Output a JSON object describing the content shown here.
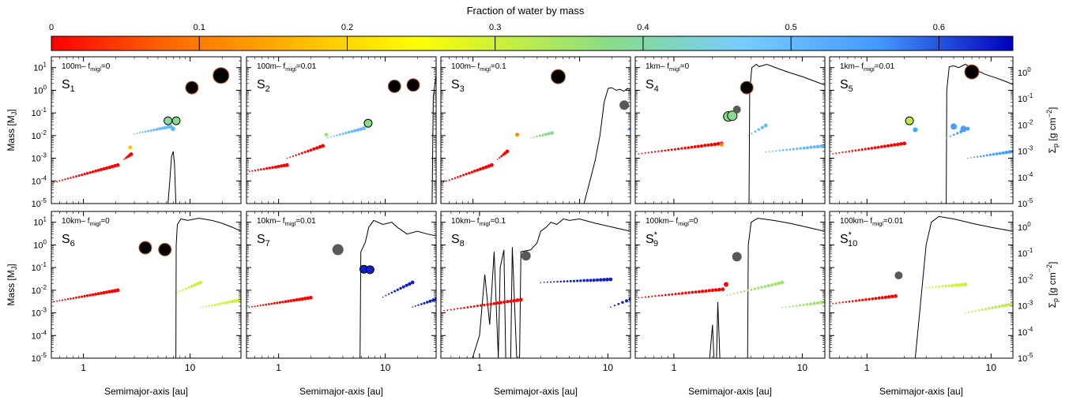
{
  "colorbar": {
    "title": "Fraction of water by mass",
    "range": [
      0,
      0.65
    ],
    "ticks": [
      {
        "value": 0,
        "label": "0"
      },
      {
        "value": 0.1,
        "label": "0.1"
      },
      {
        "value": 0.2,
        "label": "0.2"
      },
      {
        "value": 0.3,
        "label": "0.3"
      },
      {
        "value": 0.4,
        "label": "0.4"
      },
      {
        "value": 0.5,
        "label": "0.5"
      },
      {
        "value": 0.6,
        "label": "0.6"
      }
    ],
    "colormap": [
      "#ff0000",
      "#ff6600",
      "#ffbb00",
      "#ffff00",
      "#88dd88",
      "#77ccff",
      "#4499ff",
      "#0000bb"
    ]
  },
  "axes": {
    "ylabel_left": "Mass [M_J]",
    "ylabel_right": "Σp [g cm⁻²]",
    "xlabel": "Semimajor-axis [au]",
    "x_ticks": [
      {
        "value": 1,
        "label": "1"
      },
      {
        "value": 10,
        "label": "10"
      }
    ],
    "y_left_ticks": [
      "10^1",
      "10^0",
      "10^-1",
      "10^-2",
      "10^-3",
      "10^-4",
      "10^-5"
    ],
    "y_right_ticks": [
      "10^0",
      "10^-1",
      "10^-2",
      "10^-3",
      "10^-4",
      "10^-5"
    ]
  },
  "chart_data": [
    {
      "type": "scatter",
      "id": "S1",
      "label": "S",
      "sub": "1",
      "star": false,
      "size_text": "100m",
      "fmig_text": "0",
      "ylim": [
        1e-05,
        30
      ],
      "xlim": [
        0.5,
        30
      ],
      "disk_line": [
        [
          6.2,
          1e-05
        ],
        [
          6.45,
          0.0001
        ],
        [
          6.7,
          0.0012
        ],
        [
          6.95,
          0.002
        ],
        [
          7.15,
          0.0005
        ],
        [
          7.35,
          1e-05
        ]
      ],
      "embryos": [
        [
          0.5,
          2.1,
          8e-05,
          0.0005,
          0
        ],
        [
          2.4,
          2.8,
          0.0009,
          0.0015,
          0
        ],
        [
          3.0,
          6.6,
          0.012,
          0.025,
          0.5
        ]
      ],
      "points": [
        [
          2.75,
          0.003,
          0.18,
          2.5
        ],
        [
          6.2,
          0.045,
          0.4,
          5
        ],
        [
          7.4,
          0.045,
          0.38,
          5
        ],
        [
          6.9,
          0.02,
          0.5,
          3
        ],
        [
          10.4,
          1.3,
          0,
          8
        ],
        [
          19.5,
          4.5,
          0,
          10
        ]
      ]
    },
    {
      "type": "scatter",
      "id": "S2",
      "label": "S",
      "sub": "2",
      "star": false,
      "size_text": "100m",
      "fmig_text": "0.01",
      "ylim": [
        1e-05,
        30
      ],
      "xlim": [
        0.5,
        30
      ],
      "disk_line": [
        [
          27.5,
          1e-05
        ],
        [
          28.2,
          0.5
        ],
        [
          30,
          5
        ]
      ],
      "embryos": [
        [
          0.5,
          1.2,
          0.00025,
          0.0005,
          0
        ],
        [
          1.2,
          2.6,
          0.001,
          0.0035,
          0
        ],
        [
          2.9,
          6.3,
          0.008,
          0.021,
          0.5
        ]
      ],
      "points": [
        [
          2.8,
          0.011,
          0.35,
          2.5
        ],
        [
          6.9,
          0.035,
          0.38,
          5
        ],
        [
          12.2,
          1.5,
          0,
          8
        ],
        [
          18.3,
          1.7,
          0,
          8
        ]
      ]
    },
    {
      "type": "scatter",
      "id": "S3",
      "label": "S",
      "sub": "3",
      "star": false,
      "size_text": "100m",
      "fmig_text": "0.1",
      "ylim": [
        1e-05,
        30
      ],
      "xlim": [
        0.5,
        30
      ],
      "disk_line": [
        [
          11,
          1e-05
        ],
        [
          12.5,
          0.0001
        ],
        [
          14,
          0.0008
        ],
        [
          15.5,
          0.01
        ],
        [
          17,
          0.3
        ],
        [
          18.5,
          1.2
        ],
        [
          20,
          1.3
        ],
        [
          22,
          1
        ],
        [
          24,
          1.1
        ],
        [
          26,
          0.9
        ],
        [
          28,
          1.2
        ],
        [
          30,
          1.1
        ]
      ],
      "embryos": [
        [
          0.5,
          1.5,
          8e-05,
          0.0005,
          0
        ],
        [
          1.7,
          2.1,
          0.0009,
          0.002,
          0
        ],
        [
          3.5,
          5.5,
          0.008,
          0.013,
          0.38
        ],
        [
          28.5,
          30,
          0.018,
          0.02,
          0.5
        ]
      ],
      "points": [
        [
          2.6,
          0.011,
          0.12,
          2.5
        ],
        [
          6.3,
          4.0,
          0,
          9
        ],
        [
          26.2,
          0.22,
          -1,
          6
        ]
      ]
    },
    {
      "type": "scatter",
      "id": "S4",
      "label": "S",
      "sub": "4",
      "star": false,
      "size_text": "1km",
      "fmig_text": "0",
      "ylim": [
        1e-05,
        30
      ],
      "xlim": [
        0.5,
        15
      ],
      "disk_line": [
        [
          3.85,
          1e-05
        ],
        [
          3.9,
          1
        ],
        [
          4.05,
          10
        ],
        [
          4.4,
          14
        ],
        [
          4.6,
          11
        ],
        [
          5.3,
          14
        ],
        [
          6.5,
          9
        ],
        [
          8,
          6
        ],
        [
          10,
          4
        ],
        [
          12.5,
          2.5
        ],
        [
          15,
          1.7
        ]
      ],
      "embryos": [
        [
          0.5,
          2.35,
          0.0015,
          0.0045,
          0
        ],
        [
          3.8,
          5.2,
          0.01,
          0.028,
          0.5
        ],
        [
          5.2,
          15,
          0.0019,
          0.0035,
          0.5
        ]
      ],
      "points": [
        [
          2.35,
          0.004,
          0.12,
          2.5
        ],
        [
          2.65,
          0.07,
          0.38,
          6
        ],
        [
          2.85,
          0.075,
          0.38,
          6
        ],
        [
          3.1,
          0.14,
          -1,
          5
        ],
        [
          3.7,
          1.3,
          0,
          8
        ]
      ]
    },
    {
      "type": "scatter",
      "id": "S5",
      "label": "S",
      "sub": "5",
      "star": false,
      "size_text": "1km",
      "fmig_text": "0.01",
      "ylim": [
        1e-05,
        30
      ],
      "xlim": [
        0.5,
        15
      ],
      "disk_line": [
        [
          4.35,
          1e-05
        ],
        [
          4.4,
          1
        ],
        [
          4.6,
          11
        ],
        [
          5.0,
          12
        ],
        [
          5.5,
          10
        ],
        [
          6.2,
          14
        ],
        [
          7.5,
          8
        ],
        [
          9,
          5
        ],
        [
          11,
          3.5
        ],
        [
          13,
          2.5
        ],
        [
          15,
          1.8
        ]
      ],
      "embryos": [
        [
          0.5,
          2.0,
          0.0015,
          0.0045,
          0
        ],
        [
          4.4,
          6.5,
          0.008,
          0.02,
          0.55
        ],
        [
          6.5,
          15,
          0.001,
          0.002,
          0.55
        ]
      ],
      "points": [
        [
          2.2,
          0.045,
          0.32,
          5
        ],
        [
          2.45,
          0.018,
          0.55,
          3
        ],
        [
          5.0,
          0.025,
          0.55,
          4
        ],
        [
          6.0,
          0.02,
          0.55,
          4
        ],
        [
          7.0,
          6.5,
          0,
          9
        ]
      ]
    },
    {
      "type": "scatter",
      "id": "S6",
      "label": "S",
      "sub": "6",
      "star": false,
      "size_text": "10km",
      "fmig_text": "0",
      "ylim": [
        1e-05,
        30
      ],
      "xlim": [
        0.5,
        30
      ],
      "disk_line": [
        [
          7.35,
          1e-05
        ],
        [
          7.4,
          1
        ],
        [
          7.6,
          8
        ],
        [
          8.2,
          14
        ],
        [
          9.5,
          12
        ],
        [
          12,
          15
        ],
        [
          16,
          12
        ],
        [
          20,
          9
        ],
        [
          25,
          6
        ],
        [
          30,
          4
        ]
      ],
      "embryos": [
        [
          0.5,
          2.1,
          0.003,
          0.01,
          0
        ],
        [
          7.6,
          12.5,
          0.008,
          0.022,
          0.3
        ],
        [
          12.5,
          30,
          0.0017,
          0.0038,
          0.3
        ]
      ],
      "points": [
        [
          3.8,
          0.75,
          0,
          8
        ],
        [
          5.8,
          0.62,
          0,
          8
        ]
      ]
    },
    {
      "type": "scatter",
      "id": "S7",
      "label": "S",
      "sub": "7",
      "star": false,
      "size_text": "10km",
      "fmig_text": "0.01",
      "ylim": [
        1e-05,
        30
      ],
      "xlim": [
        0.5,
        30
      ],
      "disk_line": [
        [
          5.8,
          1e-05
        ],
        [
          5.9,
          0.5
        ],
        [
          6.5,
          1.3
        ],
        [
          7.0,
          6
        ],
        [
          7.8,
          12
        ],
        [
          9.5,
          8
        ],
        [
          11.5,
          10
        ],
        [
          13,
          6
        ],
        [
          16,
          3
        ],
        [
          20,
          4
        ],
        [
          25,
          3
        ],
        [
          30,
          2.5
        ]
      ],
      "embryos": [
        [
          0.5,
          2.0,
          0.0017,
          0.0047,
          0
        ],
        [
          9.5,
          18,
          0.005,
          0.022,
          0.63
        ],
        [
          18,
          30,
          0.0018,
          0.004,
          0.63
        ]
      ],
      "points": [
        [
          3.6,
          0.62,
          -1,
          7
        ],
        [
          6.3,
          0.085,
          0.63,
          5
        ],
        [
          7.2,
          0.08,
          0.63,
          5
        ]
      ]
    },
    {
      "type": "scatter",
      "id": "S8",
      "label": "S",
      "sub": "8",
      "star": false,
      "size_text": "10km",
      "fmig_text": "0.1",
      "ylim": [
        1e-05,
        30
      ],
      "xlim": [
        0.5,
        15
      ],
      "disk_line": [
        [
          0.88,
          1e-05
        ],
        [
          1.0,
          0.0001
        ],
        [
          1.1,
          0.05
        ],
        [
          1.2,
          0.0003
        ],
        [
          1.3,
          0.5
        ],
        [
          1.4,
          1e-05
        ],
        [
          1.45,
          0.1
        ],
        [
          1.55,
          0.6
        ],
        [
          1.6,
          1e-05
        ],
        [
          1.75,
          1e-05
        ],
        [
          1.8,
          0.8
        ],
        [
          1.95,
          1e-05
        ],
        [
          2.05,
          1e-05
        ],
        [
          2.1,
          0.5
        ],
        [
          2.5,
          0.6
        ],
        [
          2.8,
          1.2
        ],
        [
          3.0,
          4
        ],
        [
          3.3,
          6
        ],
        [
          3.6,
          10
        ],
        [
          4.0,
          8
        ],
        [
          4.5,
          14
        ],
        [
          5.0,
          12
        ],
        [
          6,
          14
        ],
        [
          8,
          9
        ],
        [
          11,
          6
        ],
        [
          15,
          4
        ]
      ],
      "embryos": [
        [
          0.5,
          2.1,
          0.0012,
          0.0038,
          0
        ],
        [
          3.0,
          10.5,
          0.022,
          0.03,
          0.63
        ],
        [
          10.5,
          15,
          0.0018,
          0.004,
          0.63
        ]
      ],
      "points": [
        [
          2.3,
          0.33,
          -1,
          6
        ]
      ]
    },
    {
      "type": "scatter",
      "id": "S9",
      "label": "S",
      "sub": "9",
      "star": true,
      "size_text": "100km",
      "fmig_text": "0",
      "ylim": [
        1e-05,
        30
      ],
      "xlim": [
        0.5,
        15
      ],
      "disk_line": [
        [
          1.9,
          1e-05
        ],
        [
          2.0,
          0.0003
        ],
        [
          2.05,
          1e-05
        ],
        [
          2.15,
          1e-05
        ],
        [
          2.2,
          0.003
        ],
        [
          2.28,
          1e-05
        ],
        [
          3.75,
          1e-05
        ],
        [
          3.8,
          1
        ],
        [
          4.0,
          10
        ],
        [
          4.5,
          15
        ],
        [
          6,
          12
        ],
        [
          8,
          9
        ],
        [
          11,
          6
        ],
        [
          15,
          4
        ]
      ],
      "embryos": [
        [
          0.5,
          2.4,
          0.0045,
          0.011,
          0
        ],
        [
          2.6,
          7,
          0.006,
          0.022,
          0.35
        ],
        [
          7,
          15,
          0.0017,
          0.003,
          0.35
        ]
      ],
      "points": [
        [
          2.55,
          0.018,
          0,
          3
        ],
        [
          3.1,
          0.3,
          -1,
          6
        ]
      ]
    },
    {
      "type": "scatter",
      "id": "S10",
      "label": "S",
      "sub": "10",
      "star": true,
      "size_text": "100km",
      "fmig_text": "0.01",
      "ylim": [
        1e-05,
        30
      ],
      "xlim": [
        0.5,
        15
      ],
      "disk_line": [
        [
          2.45,
          1e-05
        ],
        [
          2.6,
          0.0003
        ],
        [
          2.8,
          0.02
        ],
        [
          3.0,
          1
        ],
        [
          3.3,
          10
        ],
        [
          3.8,
          18
        ],
        [
          5,
          14
        ],
        [
          7,
          9
        ],
        [
          10,
          6
        ],
        [
          15,
          4
        ]
      ],
      "embryos": [
        [
          0.5,
          1.7,
          0.0025,
          0.0055,
          0
        ],
        [
          3.0,
          6.2,
          0.013,
          0.018,
          0.3
        ],
        [
          6.2,
          15,
          0.001,
          0.0025,
          0.32
        ]
      ],
      "points": [
        [
          1.8,
          0.045,
          -1,
          5
        ]
      ]
    }
  ]
}
